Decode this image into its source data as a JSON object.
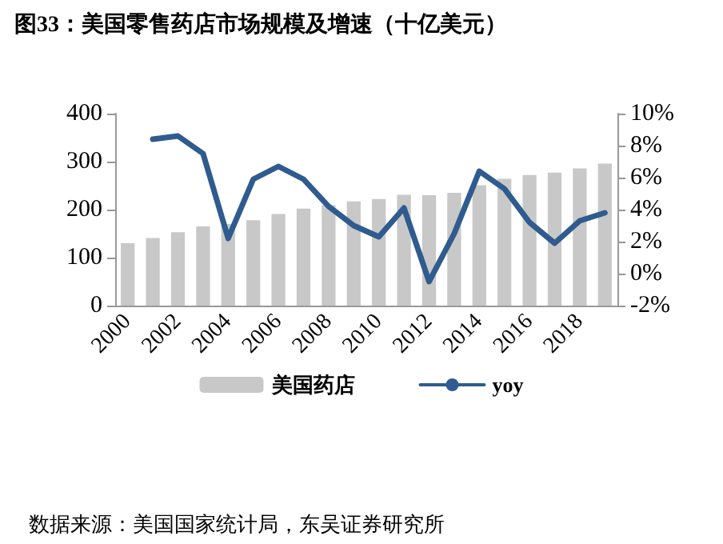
{
  "chart_data": {
    "type": "bar",
    "title": "图33：美国零售药店市场规模及增速（十亿美元）",
    "annotations": [
      "数据来源：美国国家统计局，东吴证券研究所"
    ],
    "categories": [
      "2000",
      null,
      "2002",
      null,
      "2004",
      null,
      "2006",
      null,
      "2008",
      null,
      "2010",
      null,
      "2012",
      null,
      "2014",
      null,
      "2016",
      null,
      "2018",
      null
    ],
    "series": [
      {
        "name": "美国药店",
        "color": "#c8c8c8",
        "values": [
          130,
          141,
          153,
          165,
          170,
          178,
          191,
          202,
          209,
          217,
          222,
          231,
          230,
          235,
          251,
          264,
          272,
          277,
          286,
          296
        ]
      },
      {
        "name": "yoy",
        "type": "line",
        "axis": "y2",
        "color": "#2f5b8f",
        "values": [
          null,
          8.4,
          8.6,
          7.5,
          2.2,
          5.9,
          6.7,
          5.9,
          4.2,
          3.0,
          2.3,
          4.1,
          -0.5,
          2.5,
          6.4,
          5.3,
          3.2,
          1.9,
          3.3,
          3.8
        ]
      }
    ],
    "ylim": [
      0,
      400
    ],
    "yticks": [
      0,
      100,
      200,
      300,
      400
    ],
    "y2lim": [
      -2,
      10
    ],
    "y2ticks": [
      {
        "value": -2,
        "label": "-2%"
      },
      {
        "value": 0,
        "label": "0%"
      },
      {
        "value": 2,
        "label": "2%"
      },
      {
        "value": 4,
        "label": "4%"
      },
      {
        "value": 6,
        "label": "6%"
      },
      {
        "value": 8,
        "label": "8%"
      },
      {
        "value": 10,
        "label": "10%"
      }
    ],
    "grid": false,
    "legend": "bottom",
    "marker": "none",
    "line_style": "solid"
  }
}
